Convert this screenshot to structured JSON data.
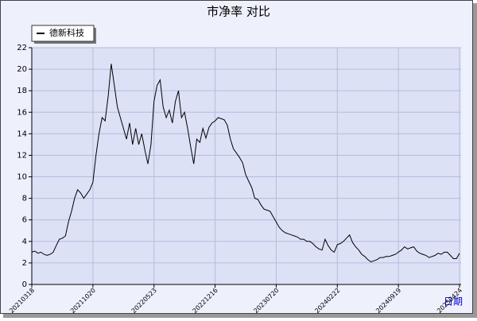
{
  "chart_data": {
    "type": "line",
    "title": "市净率  对比",
    "x_label": "日期",
    "xlim": [
      0,
      140
    ],
    "xticks": [
      {
        "value": 0,
        "label": "20210318"
      },
      {
        "value": 20,
        "label": "20211020"
      },
      {
        "value": 40,
        "label": "20220523"
      },
      {
        "value": 60,
        "label": "20221216"
      },
      {
        "value": 80,
        "label": "20230720"
      },
      {
        "value": 100,
        "label": "20240222"
      },
      {
        "value": 120,
        "label": "20240919"
      },
      {
        "value": 140,
        "label": "20250424"
      }
    ],
    "ylim": [
      0,
      22
    ],
    "yticks": [
      0,
      2,
      4,
      6,
      8,
      10,
      12,
      14,
      16,
      18,
      20,
      22
    ],
    "grid": true,
    "series": [
      {
        "name": "德新科技",
        "color": "#000000",
        "values": [
          3.0,
          3.1,
          2.9,
          3.0,
          2.8,
          2.7,
          2.8,
          3.0,
          3.6,
          4.2,
          4.3,
          4.5,
          5.8,
          6.8,
          8.0,
          8.8,
          8.5,
          8.0,
          8.4,
          8.8,
          9.5,
          12,
          14,
          15.5,
          15.2,
          17.5,
          20.5,
          18.5,
          16.5,
          15.5,
          14.5,
          13.5,
          15,
          13,
          14.5,
          13,
          14,
          12.5,
          11.2,
          13,
          17,
          18.5,
          19,
          16.5,
          15.5,
          16.2,
          15,
          17,
          18,
          15.5,
          16,
          14.5,
          12.8,
          11.2,
          13.5,
          13.2,
          14.5,
          13.6,
          14.6,
          15,
          15.2,
          15.5,
          15.4,
          15.3,
          14.8,
          13.5,
          12.6,
          12.2,
          11.8,
          11.3,
          10.2,
          9.6,
          9,
          8,
          7.9,
          7.4,
          7,
          6.9,
          6.8,
          6.3,
          5.8,
          5.3,
          5,
          4.8,
          4.7,
          4.6,
          4.5,
          4.4,
          4.2,
          4.2,
          4.0,
          4.0,
          3.8,
          3.5,
          3.3,
          3.2,
          4.2,
          3.6,
          3.2,
          3.0,
          3.7,
          3.8,
          4.0,
          4.3,
          4.6,
          3.9,
          3.5,
          3.2,
          2.8,
          2.6,
          2.3,
          2.1,
          2.2,
          2.3,
          2.5,
          2.5,
          2.6,
          2.6,
          2.7,
          2.8,
          3.0,
          3.2,
          3.5,
          3.3,
          3.4,
          3.5,
          3.1,
          2.9,
          2.8,
          2.7,
          2.5,
          2.6,
          2.7,
          2.9,
          2.8,
          3.0,
          3.0,
          2.7,
          2.4,
          2.4,
          2.9
        ]
      }
    ]
  }
}
